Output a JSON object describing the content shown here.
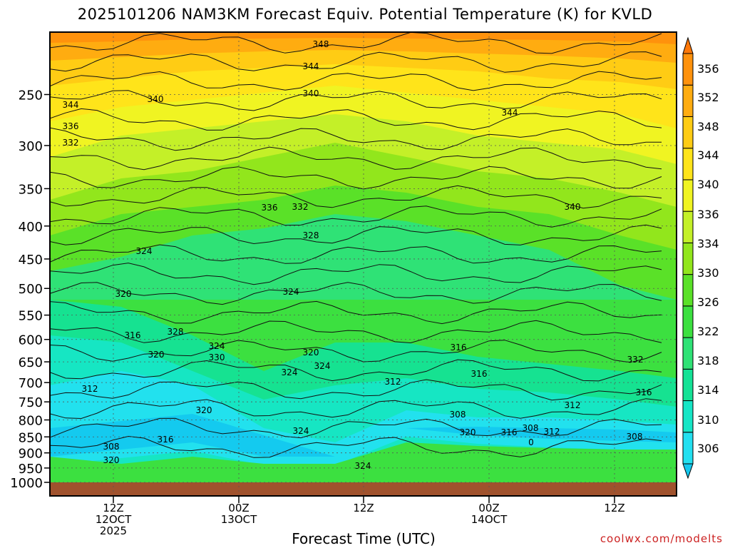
{
  "chart_data": {
    "type": "heatmap",
    "title": "2025101206 NAM3KM Forecast Equiv. Potential Temperature (K) for KVLD",
    "xlabel": "Forecast Time (UTC)",
    "ylabel": "",
    "credit": "coolwx.com/modelts",
    "y_scale": "pressure (hPa), log",
    "ylim": [
      1000,
      200
    ],
    "y_ticks": [
      250,
      300,
      350,
      400,
      450,
      500,
      550,
      600,
      650,
      700,
      750,
      800,
      850,
      900,
      950,
      1000
    ],
    "y_tick_labels": [
      "250",
      "300",
      "350",
      "400",
      "450",
      "500",
      "550",
      "600",
      "650",
      "700",
      "750",
      "800",
      "850",
      "900",
      "950",
      "1000"
    ],
    "x_ticks": [
      {
        "l1": "12Z",
        "l2": "12OCT",
        "l3": "2025"
      },
      {
        "l1": "00Z",
        "l2": "13OCT",
        "l3": ""
      },
      {
        "l1": "12Z",
        "l2": "",
        "l3": ""
      },
      {
        "l1": "00Z",
        "l2": "14OCT",
        "l3": ""
      },
      {
        "l1": "12Z",
        "l2": "",
        "l3": ""
      }
    ],
    "grid": true,
    "colorbar": {
      "levels": [
        306,
        310,
        314,
        318,
        322,
        326,
        330,
        334,
        336,
        340,
        344,
        348,
        352,
        356
      ],
      "labels": [
        "306",
        "310",
        "314",
        "318",
        "322",
        "326",
        "330",
        "334",
        "336",
        "340",
        "344",
        "348",
        "352",
        "356"
      ],
      "colors": [
        "#14c8ee",
        "#23e0f0",
        "#16e6c6",
        "#14e296",
        "#2fe276",
        "#3ce040",
        "#5ae128",
        "#92e61c",
        "#c4f028",
        "#f0f422",
        "#ffe41a",
        "#ffcc14",
        "#ffac10",
        "#ff920c",
        "#ff7808"
      ]
    },
    "contour_labels": [
      "348",
      "344",
      "344",
      "340",
      "340",
      "344",
      "336",
      "332",
      "336",
      "332",
      "340",
      "328",
      "324",
      "324",
      "320",
      "316",
      "328",
      "324",
      "330",
      "320",
      "320",
      "316",
      "324",
      "324",
      "332",
      "312",
      "316",
      "312",
      "312",
      "320",
      "316",
      "308",
      "308",
      "308",
      "320",
      "324",
      "316",
      "308",
      "312",
      "0",
      "316",
      "320",
      "324"
    ],
    "ground_color": "#a0522d"
  }
}
